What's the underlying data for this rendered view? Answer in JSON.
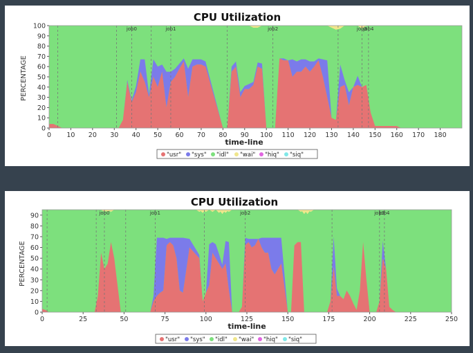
{
  "charts": [
    {
      "title": "CPU Utilization",
      "xlabel": "time-line",
      "ylabel": "PERCENTAGE",
      "x_ticks": [
        0,
        10,
        20,
        30,
        40,
        50,
        60,
        70,
        80,
        90,
        100,
        110,
        120,
        130,
        140,
        150,
        160,
        170,
        180
      ],
      "y_ticks": [
        0,
        10,
        20,
        30,
        40,
        50,
        60,
        70,
        80,
        90,
        100
      ]
    },
    {
      "title": "CPU Utilization",
      "xlabel": "time-line",
      "ylabel": "PERCENTAGE",
      "x_ticks": [
        0,
        25,
        50,
        75,
        100,
        125,
        150,
        175,
        200,
        225,
        250
      ],
      "y_ticks": [
        0,
        10,
        20,
        30,
        40,
        50,
        60,
        70,
        80,
        90
      ]
    }
  ],
  "colors": {
    "usr": "#e57373",
    "sys": "#7b7bea",
    "idl": "#7de07d",
    "wai": "#f0e68c",
    "hiq": "#e066e0",
    "siq": "#80e8e8"
  },
  "chart_data": [
    {
      "type": "area",
      "title": "CPU Utilization",
      "xlabel": "time-line",
      "ylabel": "PERCENTAGE",
      "xlim": [
        0,
        190
      ],
      "ylim": [
        0,
        100
      ],
      "stacked": true,
      "grid": false,
      "legend_position": "bottom",
      "legend": [
        "\"usr\"",
        "\"sys\"",
        "\"idl\"",
        "\"wai\"",
        "\"hiq\"",
        "\"siq\""
      ],
      "x": [
        0,
        2,
        4,
        6,
        32,
        34,
        36,
        38,
        40,
        42,
        44,
        46,
        48,
        50,
        52,
        54,
        56,
        58,
        60,
        62,
        64,
        66,
        68,
        70,
        72,
        80,
        82,
        84,
        86,
        88,
        90,
        92,
        94,
        96,
        98,
        100,
        102,
        104,
        106,
        108,
        110,
        112,
        114,
        116,
        118,
        120,
        122,
        124,
        126,
        128,
        130,
        132,
        134,
        136,
        138,
        140,
        142,
        144,
        146,
        148,
        150,
        160,
        162,
        190
      ],
      "series": [
        {
          "name": "\"usr\"",
          "values": [
            4,
            4,
            2,
            0,
            0,
            8,
            45,
            25,
            35,
            55,
            45,
            30,
            50,
            40,
            55,
            20,
            45,
            50,
            58,
            65,
            30,
            60,
            62,
            62,
            60,
            0,
            0,
            55,
            60,
            30,
            38,
            38,
            42,
            60,
            58,
            0,
            0,
            0,
            68,
            66,
            66,
            50,
            55,
            55,
            60,
            55,
            60,
            66,
            50,
            30,
            10,
            8,
            40,
            42,
            22,
            40,
            42,
            40,
            42,
            15,
            2,
            2,
            0,
            0
          ]
        },
        {
          "name": "\"sys\"",
          "values": [
            0,
            0,
            0,
            0,
            0,
            0,
            2,
            2,
            6,
            12,
            22,
            3,
            17,
            20,
            7,
            35,
            10,
            8,
            5,
            3,
            28,
            7,
            5,
            5,
            5,
            0,
            0,
            5,
            5,
            5,
            3,
            5,
            3,
            4,
            5,
            0,
            0,
            0,
            0,
            2,
            0,
            17,
            10,
            12,
            7,
            10,
            5,
            2,
            17,
            36,
            0,
            0,
            22,
            5,
            13,
            0,
            9,
            0,
            0,
            0,
            0,
            0,
            0,
            0
          ]
        },
        {
          "name": "\"wai\"",
          "values": [
            0,
            0,
            0,
            0,
            0,
            0,
            0,
            0,
            0,
            0,
            0,
            0,
            0,
            0,
            0,
            0,
            0,
            0,
            0,
            0,
            0,
            0,
            0,
            0,
            0,
            0,
            0,
            0,
            0,
            0,
            0,
            0,
            2,
            2,
            0,
            0,
            0,
            0,
            0,
            0,
            0,
            0,
            0,
            0,
            0,
            0,
            0,
            0,
            0,
            0,
            2,
            4,
            3,
            0,
            0,
            0,
            0,
            3,
            0,
            0,
            0,
            0,
            0,
            0
          ]
        },
        {
          "name": "\"hiq\"",
          "values": [
            0,
            0,
            0,
            0,
            0,
            0,
            0,
            0,
            0,
            0,
            0,
            0,
            0,
            0,
            0,
            0,
            0,
            0,
            0,
            0,
            0,
            0,
            0,
            0,
            0,
            0,
            0,
            0,
            0,
            0,
            0,
            0,
            0,
            0,
            0,
            0,
            0,
            0,
            0,
            0,
            0,
            0,
            0,
            0,
            0,
            0,
            0,
            0,
            0,
            0,
            0,
            0,
            0,
            0,
            0,
            0,
            0,
            0,
            0,
            0,
            0,
            0,
            0,
            0
          ]
        },
        {
          "name": "\"siq\"",
          "values": [
            0,
            0,
            0,
            0,
            0,
            0,
            0,
            0,
            0,
            0,
            0,
            0,
            0,
            0,
            0,
            0,
            0,
            0,
            0,
            0,
            0,
            0,
            0,
            0,
            0,
            0,
            0,
            0,
            0,
            0,
            0,
            0,
            0,
            0,
            0,
            0,
            0,
            0,
            0,
            0,
            0,
            0,
            0,
            0,
            0,
            0,
            0,
            0,
            0,
            0,
            0,
            0,
            0,
            0,
            0,
            0,
            0,
            0,
            0,
            0,
            0,
            0,
            0,
            0
          ]
        }
      ],
      "vlines": [
        {
          "x": 4,
          "label": ""
        },
        {
          "x": 31,
          "label": ""
        },
        {
          "x": 38,
          "label": "job0"
        },
        {
          "x": 47,
          "label": ""
        },
        {
          "x": 56,
          "label": "job1"
        },
        {
          "x": 82,
          "label": ""
        },
        {
          "x": 103,
          "label": "job2"
        },
        {
          "x": 133,
          "label": ""
        },
        {
          "x": 144,
          "label": "job3"
        },
        {
          "x": 147,
          "label": "job4"
        }
      ]
    },
    {
      "type": "area",
      "title": "CPU Utilization",
      "xlabel": "time-line",
      "ylabel": "PERCENTAGE",
      "xlim": [
        0,
        250
      ],
      "ylim": [
        0,
        95
      ],
      "stacked": true,
      "grid": false,
      "legend_position": "bottom",
      "legend": [
        "\"usr\"",
        "\"sys\"",
        "\"idl\"",
        "\"wai\"",
        "\"hiq\"",
        "\"siq\""
      ],
      "x": [
        0,
        2,
        4,
        32,
        34,
        36,
        38,
        40,
        42,
        44,
        48,
        50,
        52,
        66,
        68,
        70,
        72,
        74,
        76,
        78,
        80,
        82,
        84,
        86,
        90,
        96,
        98,
        100,
        102,
        104,
        106,
        108,
        110,
        112,
        114,
        116,
        118,
        120,
        122,
        124,
        126,
        128,
        130,
        132,
        134,
        136,
        138,
        140,
        142,
        144,
        146,
        150,
        152,
        154,
        156,
        158,
        160,
        174,
        176,
        178,
        180,
        182,
        184,
        186,
        188,
        190,
        192,
        194,
        196,
        198,
        200,
        202,
        204,
        206,
        208,
        210,
        212,
        214,
        216,
        250
      ],
      "series": [
        {
          "name": "\"usr\"",
          "values": [
            3,
            2,
            0,
            0,
            15,
            55,
            40,
            45,
            65,
            50,
            0,
            0,
            0,
            0,
            10,
            15,
            18,
            20,
            62,
            65,
            62,
            50,
            20,
            18,
            60,
            50,
            10,
            18,
            25,
            55,
            50,
            45,
            40,
            45,
            20,
            0,
            0,
            0,
            5,
            62,
            65,
            60,
            62,
            68,
            60,
            55,
            55,
            40,
            35,
            40,
            45,
            0,
            0,
            62,
            65,
            65,
            0,
            0,
            10,
            42,
            15,
            15,
            12,
            20,
            15,
            8,
            2,
            20,
            65,
            30,
            0,
            0,
            0,
            10,
            50,
            40,
            5,
            2,
            0,
            0
          ]
        },
        {
          "name": "\"sys\"",
          "values": [
            0,
            0,
            0,
            0,
            0,
            0,
            0,
            0,
            0,
            0,
            0,
            0,
            0,
            0,
            5,
            54,
            51,
            49,
            6,
            4,
            7,
            19,
            49,
            51,
            8,
            3,
            0,
            0,
            38,
            10,
            13,
            9,
            4,
            21,
            45,
            0,
            0,
            0,
            0,
            7,
            3,
            8,
            6,
            0,
            9,
            14,
            14,
            29,
            34,
            29,
            24,
            0,
            0,
            0,
            0,
            0,
            0,
            0,
            0,
            28,
            7,
            0,
            0,
            0,
            0,
            0,
            0,
            0,
            0,
            0,
            0,
            0,
            0,
            0,
            16,
            0,
            0,
            0,
            0,
            0
          ]
        },
        {
          "name": "\"wai\"",
          "values": [
            0,
            0,
            0,
            0,
            0,
            0,
            0,
            0,
            0,
            0,
            0,
            0,
            0,
            0,
            0,
            0,
            0,
            0,
            0,
            0,
            0,
            0,
            0,
            0,
            0,
            0,
            0,
            0,
            0,
            0,
            0,
            0,
            0,
            0,
            0,
            0,
            0,
            0,
            0,
            0,
            0,
            0,
            0,
            0,
            0,
            0,
            0,
            0,
            0,
            0,
            0,
            0,
            0,
            0,
            0,
            0,
            0,
            0,
            0,
            0,
            0,
            0,
            0,
            0,
            0,
            0,
            0,
            0,
            0,
            0,
            0,
            0,
            0,
            0,
            0,
            0,
            0,
            0,
            0,
            0
          ]
        },
        {
          "name": "\"hiq\"",
          "values": [
            0,
            0,
            0,
            0,
            0,
            0,
            0,
            0,
            0,
            0,
            0,
            0,
            0,
            0,
            0,
            0,
            0,
            0,
            0,
            0,
            0,
            0,
            0,
            0,
            0,
            0,
            0,
            0,
            0,
            0,
            0,
            0,
            0,
            0,
            0,
            0,
            0,
            0,
            0,
            0,
            0,
            0,
            0,
            0,
            0,
            0,
            0,
            0,
            0,
            0,
            0,
            0,
            0,
            0,
            0,
            0,
            0,
            0,
            0,
            0,
            0,
            0,
            0,
            0,
            0,
            0,
            0,
            0,
            0,
            0,
            0,
            0,
            0,
            0,
            0,
            0,
            0,
            0,
            0,
            0
          ]
        },
        {
          "name": "\"siq\"",
          "values": [
            0,
            0,
            0,
            0,
            0,
            0,
            0,
            0,
            0,
            0,
            0,
            0,
            0,
            0,
            0,
            0,
            0,
            0,
            0,
            0,
            0,
            0,
            0,
            0,
            0,
            0,
            0,
            0,
            0,
            0,
            0,
            0,
            0,
            0,
            0,
            0,
            0,
            0,
            0,
            0,
            0,
            0,
            0,
            0,
            0,
            0,
            0,
            0,
            0,
            0,
            0,
            0,
            0,
            0,
            0,
            0,
            0,
            0,
            0,
            0,
            0,
            0,
            0,
            0,
            0,
            0,
            0,
            0,
            0,
            0,
            0,
            0,
            0,
            0,
            0,
            0,
            0,
            0,
            0,
            0
          ]
        }
      ],
      "top_blips": [
        [
          38,
          2
        ],
        [
          40,
          2
        ],
        [
          42,
          2
        ],
        [
          96,
          2
        ],
        [
          98,
          3
        ],
        [
          100,
          2
        ],
        [
          104,
          2
        ],
        [
          108,
          3
        ],
        [
          110,
          4
        ],
        [
          112,
          3
        ],
        [
          114,
          2
        ],
        [
          158,
          2
        ],
        [
          160,
          4
        ],
        [
          162,
          4
        ],
        [
          164,
          2
        ]
      ],
      "vlines": [
        {
          "x": 3,
          "label": ""
        },
        {
          "x": 33,
          "label": ""
        },
        {
          "x": 38,
          "label": "job0"
        },
        {
          "x": 51,
          "label": ""
        },
        {
          "x": 69,
          "label": "job1"
        },
        {
          "x": 99,
          "label": ""
        },
        {
          "x": 124,
          "label": "job2"
        },
        {
          "x": 177,
          "label": ""
        },
        {
          "x": 206,
          "label": "job3"
        },
        {
          "x": 209,
          "label": "job4"
        }
      ]
    }
  ]
}
